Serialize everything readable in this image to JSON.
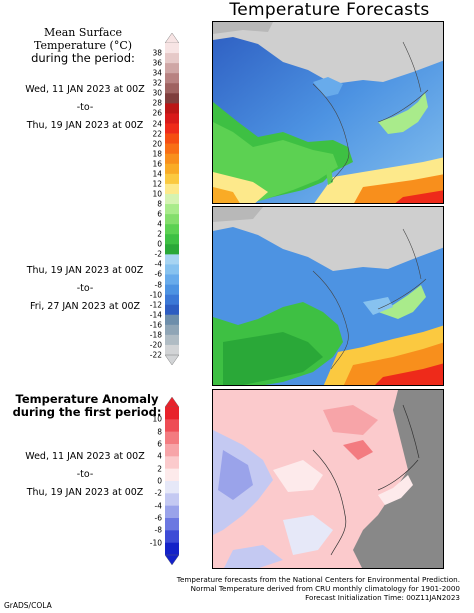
{
  "title": "Temperature Forecasts",
  "temp_legend": {
    "title_line1": "Mean Surface Temperature (°C)",
    "title_line2": "during the period:",
    "ticks": [
      "38",
      "36",
      "34",
      "32",
      "30",
      "28",
      "26",
      "24",
      "22",
      "20",
      "18",
      "16",
      "14",
      "12",
      "10",
      "8",
      "6",
      "4",
      "2",
      "0",
      "-2",
      "-4",
      "-6",
      "-8",
      "-10",
      "-12",
      "-14",
      "-16",
      "-18",
      "-20",
      "-22"
    ],
    "colors": [
      "#f7e4e4",
      "#e6c9c8",
      "#cfa6a5",
      "#b88281",
      "#9f6260",
      "#7f3d3c",
      "#bb1616",
      "#d81a1a",
      "#ee2a1a",
      "#f54d12",
      "#f86e15",
      "#f88f1c",
      "#f9ab26",
      "#fbc940",
      "#fde98b",
      "#d5f3b2",
      "#a9eb8b",
      "#84de6c",
      "#5cd152",
      "#3ec043",
      "#2aa838",
      "#a7d4f2",
      "#87c2ef",
      "#68abeb",
      "#4d93e2",
      "#3b78d6",
      "#2d5dc1",
      "#6d8eab",
      "#8fa5b6",
      "#b0bcc4",
      "#d2d4d6"
    ]
  },
  "anomaly_legend": {
    "title_line1": "Temperature Anomaly",
    "title_line2": "during the first period:",
    "ticks": [
      "10",
      "8",
      "6",
      "4",
      "2",
      "0",
      "-2",
      "-4",
      "-6",
      "-8",
      "-10"
    ],
    "colors": [
      "#e8222b",
      "#ee4d55",
      "#f37b80",
      "#f7a4a8",
      "#fbcacc",
      "#fdeaeb",
      "#e6e8f8",
      "#c4c9f2",
      "#9aa3ea",
      "#6c78e1",
      "#3d4bd6",
      "#1422c8"
    ]
  },
  "periods": [
    {
      "start": "Wed, 11 JAN 2023 at 00Z",
      "to": "-to-",
      "end": "Thu, 19 JAN 2023 at 00Z"
    },
    {
      "start": "Thu, 19 JAN 2023 at 00Z",
      "to": "-to-",
      "end": "Fri, 27 JAN 2023 at 00Z"
    },
    {
      "start": "Wed, 11 JAN 2023 at 00Z",
      "to": "-to-",
      "end": "Thu, 19 JAN 2023 at 00Z"
    }
  ],
  "footer": {
    "line1": "Temperature forecasts from the National Centers for Environmental Prediction.",
    "line2": "Normal Temperature derived from CRU monthly climatology for 1901-2000",
    "line3": "Forecast Initialization Time: 00Z11JAN2023"
  },
  "credit": "GrADS/COLA"
}
